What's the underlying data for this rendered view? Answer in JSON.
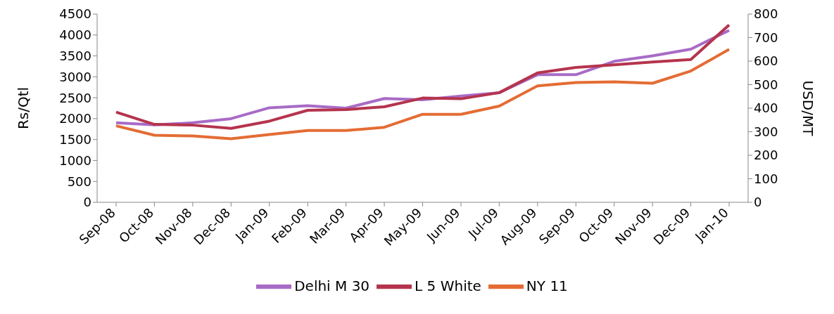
{
  "chart_data": {
    "type": "line",
    "ylabel": "Rs/Qtl",
    "y2label": "USD/MT",
    "categories": [
      "Sep-08",
      "Oct-08",
      "Nov-08",
      "Dec-08",
      "Jan-09",
      "Feb-09",
      "Mar-09",
      "Apr-09",
      "May-09",
      "Jun-09",
      "Jul-09",
      "Aug-09",
      "Sep-09",
      "Oct-09",
      "Nov-09",
      "Dec-09",
      "Jan-10"
    ],
    "series": [
      {
        "name": "Delhi M 30",
        "color": "#a86bc6",
        "values": [
          1900,
          1850,
          1900,
          2000,
          2260,
          2310,
          2250,
          2480,
          2450,
          2540,
          2620,
          3050,
          3050,
          3370,
          3500,
          3660,
          4110
        ]
      },
      {
        "name": "L 5 White",
        "color": "#b5344d",
        "axis": "y2",
        "values": [
          383,
          331,
          328,
          314,
          345,
          391,
          394,
          406,
          443,
          440,
          466,
          550,
          573,
          584,
          596,
          607,
          754
        ]
      },
      {
        "name": "NY 11",
        "color": "#e46c34",
        "axis": "y2",
        "values": [
          325,
          285,
          282,
          270,
          288,
          305,
          305,
          319,
          374,
          374,
          409,
          495,
          509,
          512,
          506,
          558,
          650
        ]
      }
    ],
    "ylim": [
      0,
      4500
    ],
    "yticks": [
      0,
      500,
      1000,
      1500,
      2000,
      2500,
      3000,
      3500,
      4000,
      4500
    ],
    "y2lim": [
      0,
      800
    ],
    "y2ticks": [
      0,
      100,
      200,
      300,
      400,
      500,
      600,
      700,
      800
    ],
    "grid": false,
    "legend": "bottom",
    "marker": "none",
    "line_style": "solid"
  }
}
